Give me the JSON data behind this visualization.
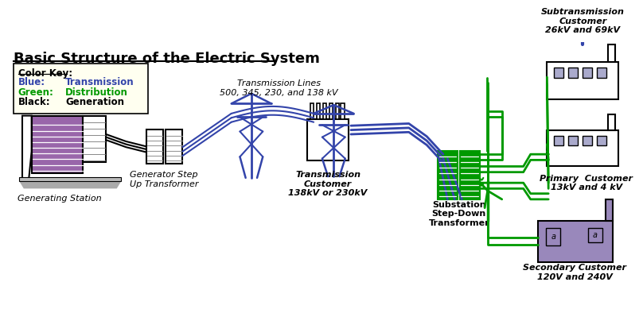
{
  "title": "Basic Structure of the Electric System",
  "bg_color": "#ffffff",
  "legend_bg": "#fffff0",
  "blue": "#3344aa",
  "green": "#009900",
  "purple": "#9966aa",
  "gray": "#aaaaaa",
  "color_key_title": "Color Key:",
  "blue_label": "Blue:",
  "green_label": "Green:",
  "black_label": "Black:",
  "blue_val": "Transmission",
  "green_val": "Distribution",
  "black_val": "Generation",
  "trans_lines_label": "Transmission Lines\n500, 345, 230, and 138 kV",
  "substation_label": "Substation\nStep-Down\nTransformer",
  "subtrans_customer": "Subtransmission\nCustomer\n26kV and 69kV",
  "primary_customer": "Primary  Customer\n13kV and 4 kV",
  "secondary_customer": "Secondary Customer\n120V and 240V",
  "gen_station_label": "Generating Station",
  "gen_step_label": "Generator Step\nUp Transformer",
  "trans_customer_label": "Transmission\nCustomer\n138kV or 230kV"
}
